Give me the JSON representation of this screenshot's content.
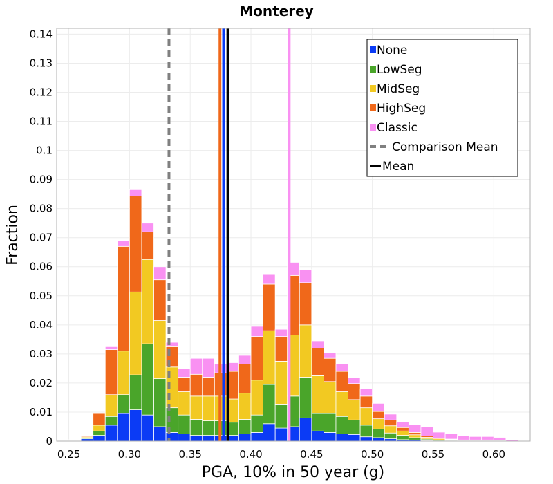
{
  "chart_data": {
    "type": "bar",
    "stacked": true,
    "title": "Monterey",
    "xlabel": "PGA, 10% in 50 year (g)",
    "ylabel": "Fraction",
    "xlim": [
      0.24,
      0.63
    ],
    "ylim": [
      0,
      0.142
    ],
    "grid": true,
    "legend_position": "top-right",
    "bin_width": 0.01,
    "x": [
      0.255,
      0.265,
      0.275,
      0.285,
      0.295,
      0.305,
      0.315,
      0.325,
      0.335,
      0.345,
      0.355,
      0.365,
      0.375,
      0.385,
      0.395,
      0.405,
      0.415,
      0.425,
      0.435,
      0.445,
      0.455,
      0.465,
      0.475,
      0.485,
      0.495,
      0.505,
      0.515,
      0.525,
      0.535,
      0.545,
      0.555,
      0.565,
      0.575,
      0.585,
      0.595,
      0.605,
      0.615,
      0.625
    ],
    "series": [
      {
        "name": "None",
        "color": "#0b3bf5",
        "values": [
          0.0001,
          0.0008,
          0.002,
          0.0055,
          0.0095,
          0.0108,
          0.009,
          0.005,
          0.003,
          0.0025,
          0.002,
          0.002,
          0.002,
          0.002,
          0.0025,
          0.003,
          0.006,
          0.0045,
          0.005,
          0.008,
          0.0035,
          0.003,
          0.0025,
          0.0023,
          0.0015,
          0.0012,
          0.0008,
          0.0005,
          0.0004,
          0.0002,
          0.0001,
          0.0001,
          0.0001,
          0.0001,
          0.0001,
          0.0,
          0.0,
          0.0
        ]
      },
      {
        "name": "LowSeg",
        "color": "#4aa52a",
        "values": [
          0.0001,
          0.0004,
          0.0015,
          0.003,
          0.0065,
          0.012,
          0.0245,
          0.0165,
          0.0085,
          0.0065,
          0.0055,
          0.005,
          0.005,
          0.0045,
          0.005,
          0.006,
          0.0135,
          0.008,
          0.0105,
          0.014,
          0.006,
          0.0065,
          0.006,
          0.005,
          0.004,
          0.003,
          0.002,
          0.0015,
          0.0008,
          0.0005,
          0.0003,
          0.0002,
          0.0001,
          0.0001,
          0.0001,
          0.0001,
          0.0,
          0.0
        ]
      },
      {
        "name": "MidSeg",
        "color": "#f2c922",
        "values": [
          0.0001,
          0.0003,
          0.002,
          0.0075,
          0.015,
          0.0285,
          0.029,
          0.02,
          0.014,
          0.008,
          0.008,
          0.0085,
          0.0085,
          0.008,
          0.009,
          0.012,
          0.0185,
          0.015,
          0.021,
          0.018,
          0.013,
          0.011,
          0.0085,
          0.007,
          0.006,
          0.0035,
          0.0025,
          0.0015,
          0.001,
          0.0006,
          0.0004,
          0.0002,
          0.0001,
          0.0001,
          0.0001,
          0.0001,
          0.0,
          0.0
        ]
      },
      {
        "name": "HighSeg",
        "color": "#f0681a",
        "values": [
          0.0001,
          0.0004,
          0.004,
          0.0155,
          0.036,
          0.033,
          0.0095,
          0.014,
          0.007,
          0.005,
          0.0075,
          0.0065,
          0.008,
          0.0095,
          0.01,
          0.015,
          0.016,
          0.0085,
          0.0205,
          0.0145,
          0.0095,
          0.008,
          0.007,
          0.0055,
          0.004,
          0.0025,
          0.002,
          0.0012,
          0.0008,
          0.0005,
          0.0003,
          0.0002,
          0.0001,
          0.0001,
          0.0001,
          0.0001,
          0.0,
          0.0
        ]
      },
      {
        "name": "Classic",
        "color": "#f991f2",
        "values": [
          0.0001,
          0.0001,
          0.0,
          0.001,
          0.002,
          0.0022,
          0.003,
          0.0045,
          0.0015,
          0.003,
          0.0055,
          0.0065,
          0.003,
          0.003,
          0.003,
          0.0035,
          0.0033,
          0.0025,
          0.0045,
          0.0045,
          0.0025,
          0.002,
          0.0025,
          0.002,
          0.0025,
          0.0028,
          0.002,
          0.002,
          0.0028,
          0.0032,
          0.002,
          0.002,
          0.0015,
          0.0012,
          0.0012,
          0.001,
          0.0004,
          0.0002
        ]
      }
    ],
    "lines": [
      {
        "name": "Comparison Mean",
        "x": 0.3325,
        "color": "#808080",
        "style": "dashed"
      },
      {
        "name": "Mean",
        "x": 0.381,
        "color": "#000000",
        "style": "solid"
      },
      {
        "name": "HighSeg mean",
        "x": 0.3745,
        "color": "#f0681a",
        "style": "solid",
        "in_legend": false
      },
      {
        "name": "None mean",
        "x": 0.3775,
        "color": "#0b3bf5",
        "style": "solid",
        "in_legend": false
      },
      {
        "name": "Classic mean",
        "x": 0.4315,
        "color": "#f991f2",
        "style": "solid",
        "in_legend": false
      }
    ],
    "x_ticks": [
      0.25,
      0.3,
      0.35,
      0.4,
      0.45,
      0.5,
      0.55,
      0.6
    ],
    "x_tick_labels": [
      "0.25",
      "0.30",
      "0.35",
      "0.40",
      "0.45",
      "0.50",
      "0.55",
      "0.60"
    ],
    "y_ticks": [
      0,
      0.01,
      0.02,
      0.03,
      0.04,
      0.05,
      0.06,
      0.07,
      0.08,
      0.09,
      0.1,
      0.11,
      0.12,
      0.13,
      0.14
    ],
    "y_tick_labels": [
      "0",
      "0.01",
      "0.02",
      "0.03",
      "0.04",
      "0.05",
      "0.06",
      "0.07",
      "0.08",
      "0.09",
      "0.1",
      "0.11",
      "0.12",
      "0.13",
      "0.14"
    ],
    "legend": [
      {
        "label": "None",
        "color": "#0b3bf5",
        "kind": "square"
      },
      {
        "label": "LowSeg",
        "color": "#4aa52a",
        "kind": "square"
      },
      {
        "label": "MidSeg",
        "color": "#f2c922",
        "kind": "square"
      },
      {
        "label": "HighSeg",
        "color": "#f0681a",
        "kind": "square"
      },
      {
        "label": "Classic",
        "color": "#f991f2",
        "kind": "square"
      },
      {
        "label": "Comparison Mean",
        "color": "#808080",
        "kind": "dashed"
      },
      {
        "label": "Mean",
        "color": "#000000",
        "kind": "solid"
      }
    ]
  }
}
